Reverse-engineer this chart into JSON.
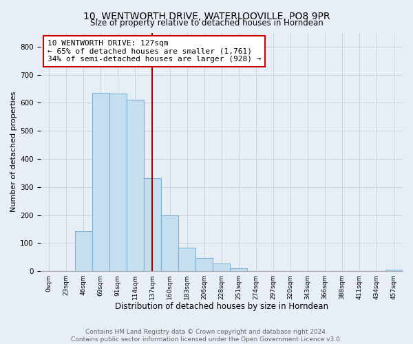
{
  "title": "10, WENTWORTH DRIVE, WATERLOOVILLE, PO8 9PR",
  "subtitle": "Size of property relative to detached houses in Horndean",
  "xlabel": "Distribution of detached houses by size in Horndean",
  "ylabel": "Number of detached properties",
  "bar_labels": [
    "0sqm",
    "23sqm",
    "46sqm",
    "69sqm",
    "91sqm",
    "114sqm",
    "137sqm",
    "160sqm",
    "183sqm",
    "206sqm",
    "228sqm",
    "251sqm",
    "274sqm",
    "297sqm",
    "320sqm",
    "343sqm",
    "366sqm",
    "388sqm",
    "411sqm",
    "434sqm",
    "457sqm"
  ],
  "bar_values": [
    0,
    0,
    142,
    635,
    632,
    610,
    332,
    200,
    84,
    46,
    26,
    11,
    0,
    0,
    0,
    0,
    0,
    0,
    0,
    0,
    4
  ],
  "bar_color": "#c5dff0",
  "bar_edge_color": "#7ab3d4",
  "property_line_x": 6.0,
  "property_line_color": "#aa0000",
  "annotation_text": "10 WENTWORTH DRIVE: 127sqm\n← 65% of detached houses are smaller (1,761)\n34% of semi-detached houses are larger (928) →",
  "annotation_box_color": "#ffffff",
  "annotation_box_edge": "#cc0000",
  "ylim": [
    0,
    850
  ],
  "yticks": [
    0,
    100,
    200,
    300,
    400,
    500,
    600,
    700,
    800
  ],
  "footer_line1": "Contains HM Land Registry data © Crown copyright and database right 2024.",
  "footer_line2": "Contains public sector information licensed under the Open Government Licence v3.0.",
  "bg_color": "#e8eef5",
  "plot_bg_color": "#e8eef5",
  "title_fontsize": 10,
  "xlabel_fontsize": 8.5,
  "ylabel_fontsize": 8,
  "footer_fontsize": 6.5,
  "annotation_fontsize": 8
}
